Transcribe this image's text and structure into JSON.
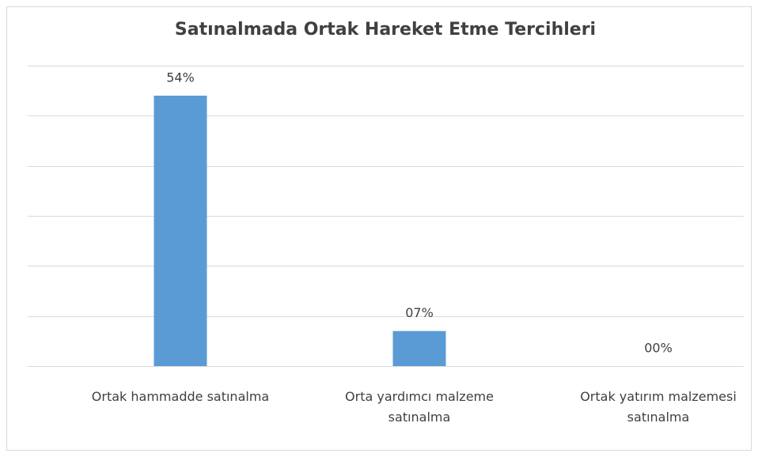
{
  "chart_data": {
    "type": "bar",
    "title": "Satınalmada Ortak Hareket Etme Tercihleri",
    "categories": [
      "Ortak hammadde satınalma",
      "Orta yardımcı malzeme satınalma",
      "Ortak yatırım malzemesi satınalma"
    ],
    "values": [
      54,
      7,
      0
    ],
    "value_labels": [
      "54%",
      "07%",
      "00%"
    ],
    "color": "#5b9bd5",
    "ylim": [
      0,
      60
    ],
    "yticks": [
      0,
      10,
      20,
      30,
      40,
      50,
      60
    ],
    "grid": true
  }
}
